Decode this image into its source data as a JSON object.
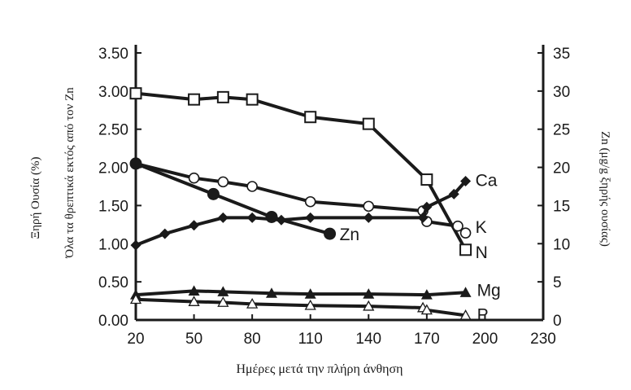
{
  "chart_data": {
    "type": "line",
    "xlabel": "Ημέρες μετά την πλήρη άνθηση",
    "ylabel_left_primary": "Ξηρή Ουσία (%)",
    "ylabel_left_secondary": "Όλα τα θρεπτικά εκτός από τον Zn",
    "ylabel_right": "Zn (μg/g ξηρής ουσίας)",
    "x_ticks": [
      "20",
      "50",
      "80",
      "110",
      "140",
      "170",
      "200",
      "230"
    ],
    "x_tick_values": [
      20,
      50,
      80,
      110,
      140,
      170,
      200,
      230
    ],
    "y_left_ticks": [
      "0.00",
      "0.50",
      "1.00",
      "1.50",
      "2.00",
      "2.50",
      "3.00",
      "3.50"
    ],
    "y_left_tick_values": [
      0,
      0.5,
      1,
      1.5,
      2,
      2.5,
      3,
      3.5
    ],
    "y_right_ticks": [
      "0",
      "5",
      "10",
      "15",
      "20",
      "25",
      "30",
      "35"
    ],
    "y_right_tick_values": [
      0,
      5,
      10,
      15,
      20,
      25,
      30,
      35
    ],
    "xlim": [
      20,
      230
    ],
    "ylim_left": [
      0,
      3.5
    ],
    "ylim_right": [
      0,
      35
    ],
    "grid": false,
    "series": [
      {
        "name": "N",
        "marker": "open-square",
        "x": [
          20,
          50,
          65,
          80,
          110,
          140,
          170,
          190
        ],
        "y": [
          2.97,
          2.89,
          2.92,
          2.89,
          2.66,
          2.57,
          1.84,
          0.92
        ]
      },
      {
        "name": "K",
        "marker": "open-circle",
        "x": [
          20,
          50,
          65,
          80,
          110,
          140,
          168,
          170,
          186,
          190
        ],
        "y": [
          2.05,
          1.86,
          1.81,
          1.75,
          1.55,
          1.49,
          1.43,
          1.29,
          1.23,
          1.14
        ]
      },
      {
        "name": "Ca",
        "marker": "filled-diamond",
        "x": [
          20,
          35,
          50,
          65,
          80,
          95,
          110,
          140,
          168,
          170,
          184,
          190
        ],
        "y": [
          0.98,
          1.13,
          1.24,
          1.34,
          1.34,
          1.31,
          1.34,
          1.34,
          1.34,
          1.48,
          1.65,
          1.82
        ]
      },
      {
        "name": "Zn",
        "marker": "filled-circle",
        "axis": "right",
        "x": [
          20,
          60,
          90,
          120
        ],
        "y": [
          20.5,
          16.5,
          13.5,
          11.3
        ]
      },
      {
        "name": "Mg",
        "marker": "filled-triangle",
        "x": [
          20,
          50,
          65,
          90,
          110,
          140,
          170,
          190
        ],
        "y": [
          0.33,
          0.38,
          0.37,
          0.35,
          0.34,
          0.34,
          0.33,
          0.36
        ]
      },
      {
        "name": "P",
        "marker": "open-triangle",
        "x": [
          20,
          50,
          65,
          80,
          110,
          140,
          168,
          170,
          190
        ],
        "y": [
          0.27,
          0.24,
          0.23,
          0.21,
          0.19,
          0.18,
          0.16,
          0.13,
          0.06
        ]
      }
    ]
  }
}
